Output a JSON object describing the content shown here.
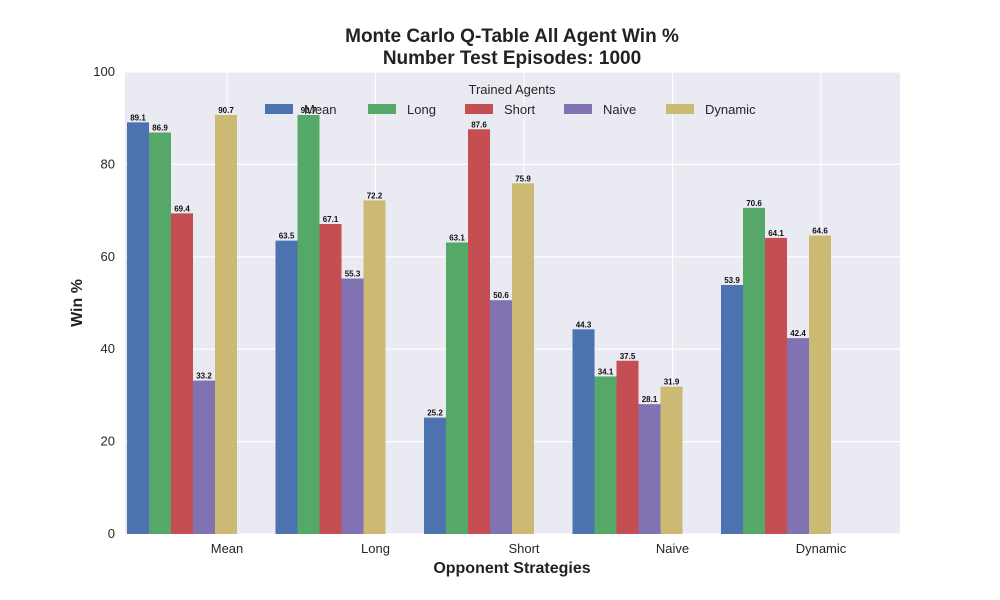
{
  "chart_data": {
    "type": "bar",
    "title": "Monte Carlo Q-Table All Agent Win %",
    "subtitle": "Number Test Episodes: 1000",
    "xlabel": "Opponent Strategies",
    "ylabel": "Win %",
    "ylim": [
      0,
      100
    ],
    "yticks": [
      "0",
      "20",
      "40",
      "60",
      "80",
      "100"
    ],
    "categories": [
      "Mean",
      "Long",
      "Short",
      "Naive",
      "Dynamic"
    ],
    "legend_title": "Trained Agents",
    "legend_position": "top-center",
    "grid": true,
    "series": [
      {
        "name": "Mean",
        "color": "#4c72b0",
        "values": [
          89.1,
          63.5,
          25.2,
          44.3,
          53.9
        ],
        "labels": [
          "89.1",
          "63.5",
          "25.2",
          "44.3",
          "53.9"
        ]
      },
      {
        "name": "Long",
        "color": "#55a868",
        "values": [
          86.9,
          90.7,
          63.1,
          34.1,
          70.6
        ],
        "labels": [
          "86.9",
          "90.7",
          "63.1",
          "34.1",
          "70.6"
        ]
      },
      {
        "name": "Short",
        "color": "#c44e52",
        "values": [
          69.4,
          67.1,
          87.6,
          37.5,
          64.1
        ],
        "labels": [
          "69.4",
          "67.1",
          "87.6",
          "37.5",
          "64.1"
        ]
      },
      {
        "name": "Naive",
        "color": "#8172b2",
        "values": [
          33.2,
          55.3,
          50.6,
          28.1,
          42.4
        ],
        "labels": [
          "33.2",
          "55.3",
          "50.6",
          "28.1",
          "42.4"
        ]
      },
      {
        "name": "Dynamic",
        "color": "#ccb974",
        "values": [
          90.7,
          72.2,
          75.9,
          31.9,
          64.6
        ],
        "labels": [
          "90.7",
          "72.2",
          "75.9",
          "31.9",
          "64.6"
        ]
      }
    ],
    "style": {
      "plot_background": "#eaeaf2",
      "grid_color": "#ffffff"
    }
  }
}
